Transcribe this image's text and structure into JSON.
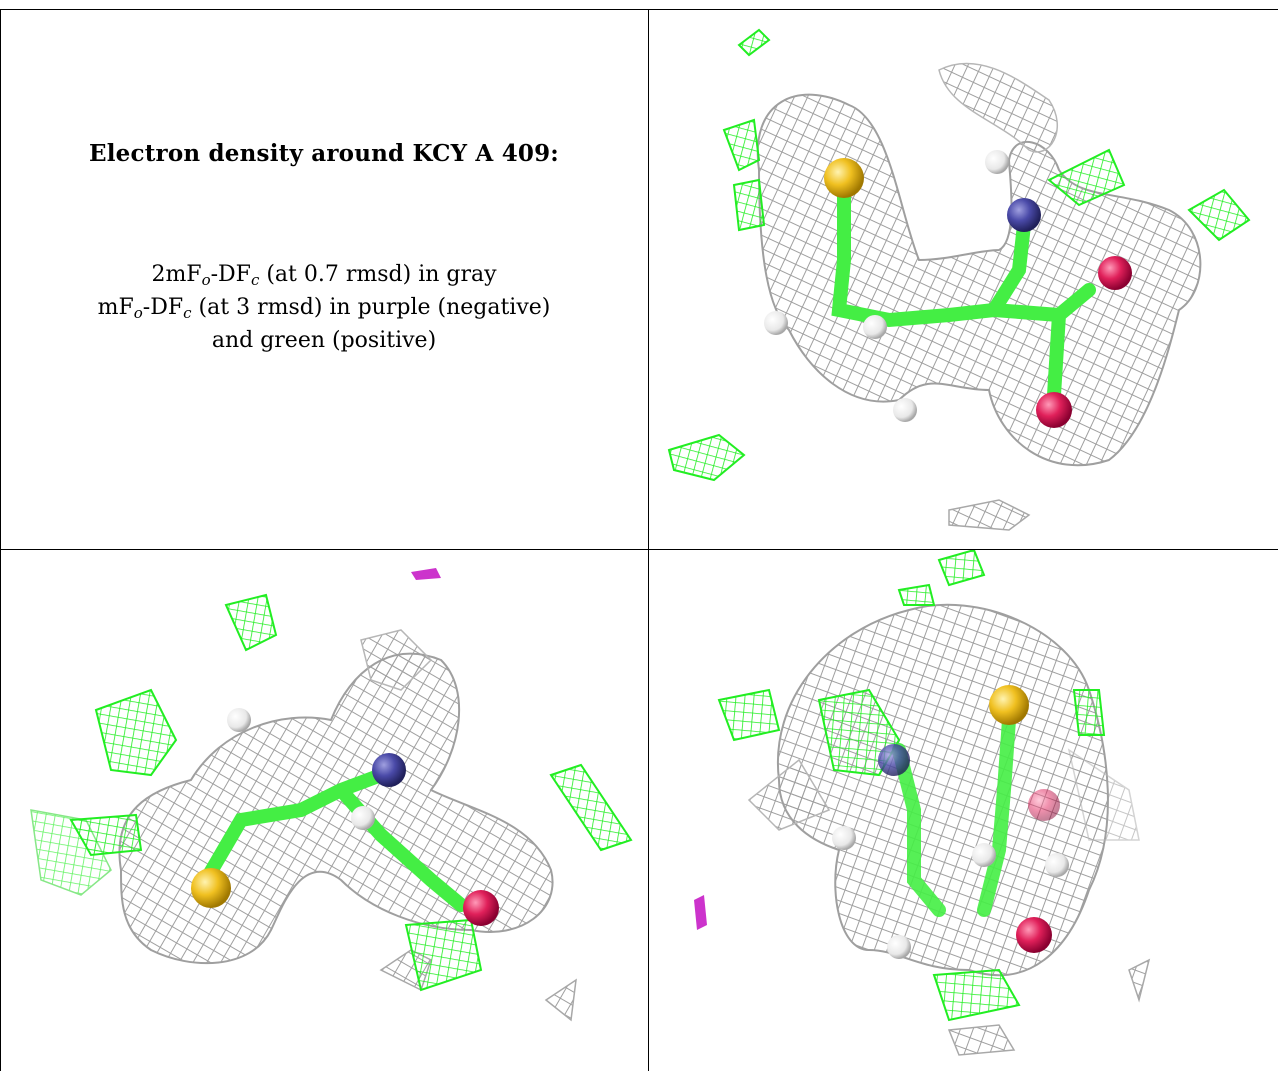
{
  "title": "Electron density around KCY A 409:",
  "legend": {
    "line1": {
      "prefix": "2mF",
      "sub1": "o",
      "mid": "-DF",
      "sub2": "c",
      "suffix": " (at 0.7 rmsd) in gray"
    },
    "line2": {
      "prefix": "mF",
      "sub1": "o",
      "mid": "-DF",
      "sub2": "c",
      "suffix": " (at 3 rmsd) in purple (negative)"
    },
    "line3": "and green (positive)"
  },
  "colors": {
    "mesh_gray": "#9a9a9a",
    "mesh_green": "#22ee22",
    "mesh_purple": "#cc33cc",
    "atom_sulfur": "#f0c020",
    "atom_nitrogen": "#4a4aa8",
    "atom_oxygen": "#e0205a",
    "atom_hydrogen": "#eeeeee",
    "bond_carbon": "#44ee44"
  },
  "views": [
    {
      "name": "view-top-right"
    },
    {
      "name": "view-bottom-left"
    },
    {
      "name": "view-bottom-right"
    }
  ]
}
